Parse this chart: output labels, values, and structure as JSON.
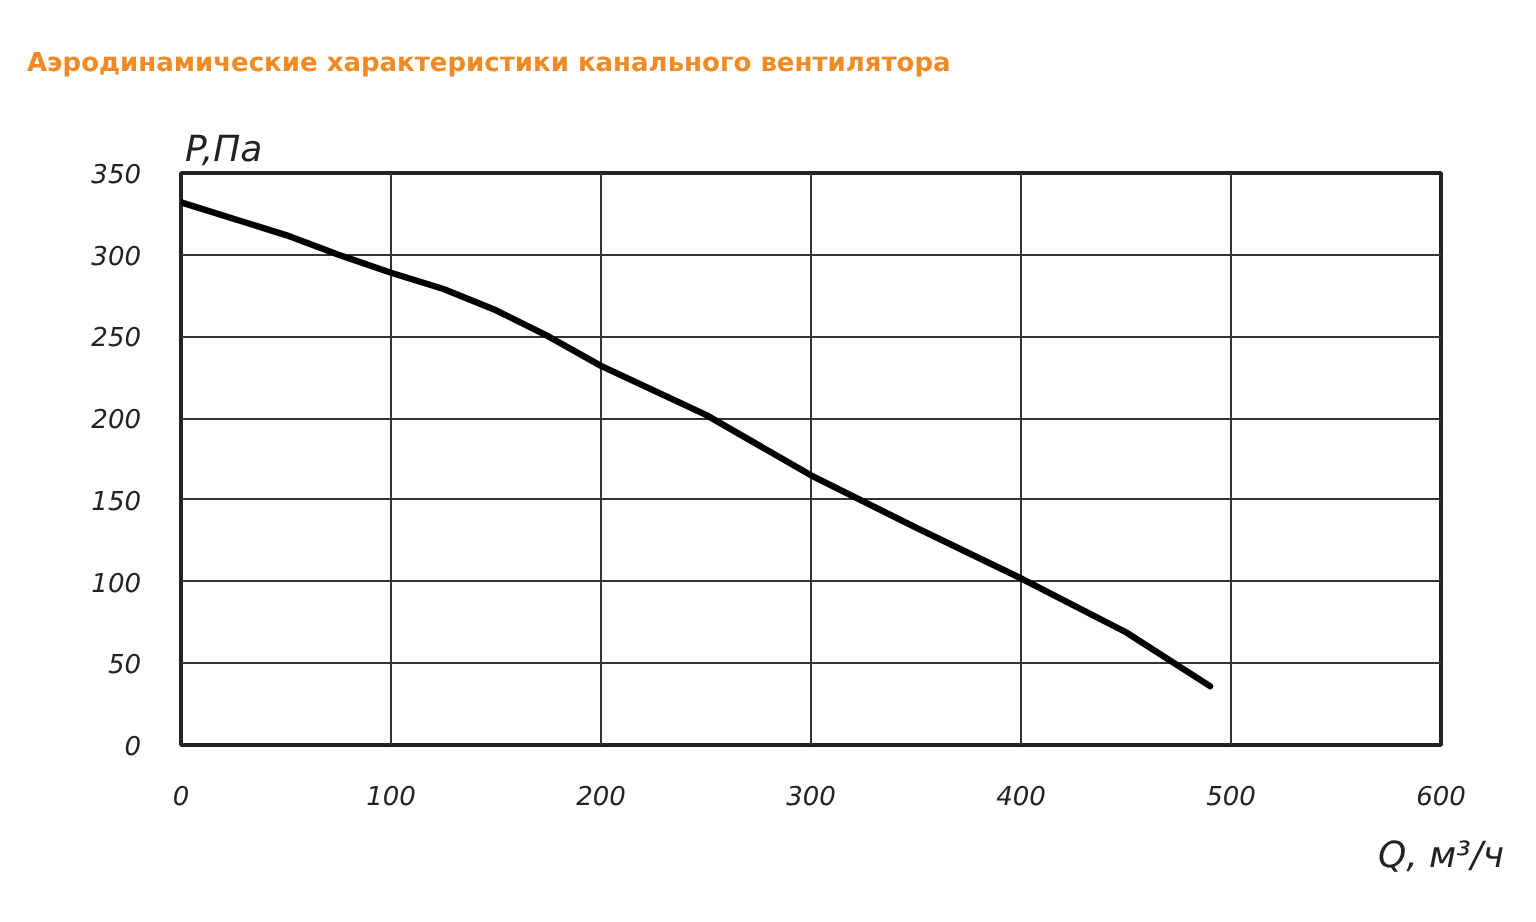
{
  "chart_data": {
    "type": "line",
    "title": "Аэродинамические характеристики канального вентилятора",
    "xlabel": "Q, м³/ч",
    "ylabel": "P,Па",
    "x": [
      0,
      25,
      50,
      75,
      100,
      125,
      150,
      175,
      200,
      250,
      300,
      350,
      400,
      450,
      490
    ],
    "series": [
      {
        "color": "#000000",
        "values": [
          332,
          322,
          312,
          300,
          289,
          279,
          266,
          250,
          232,
          202,
          165,
          133,
          102,
          69,
          36
        ]
      }
    ],
    "xlim": [
      0,
      600
    ],
    "ylim": [
      0,
      350
    ],
    "xticks": [
      0,
      100,
      200,
      300,
      400,
      500,
      600
    ],
    "yticks": [
      0,
      50,
      100,
      150,
      200,
      250,
      300,
      350
    ],
    "grid": true,
    "marker": "none",
    "line_style": "solid"
  }
}
